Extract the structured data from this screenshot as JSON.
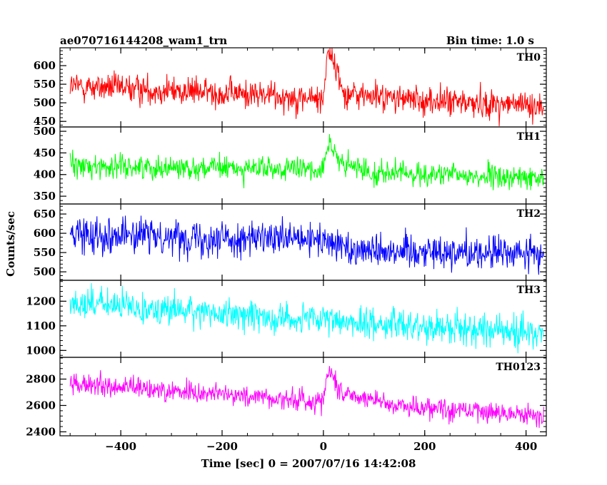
{
  "header": {
    "title": "ae070716144208_wam1_trn",
    "bin_time": "Bin time: 1.0 s"
  },
  "chart_data": {
    "type": "line",
    "title": "ae070716144208_wam1_trn",
    "xlabel": "Time [sec] 0 = 2007/07/16 14:42:08",
    "ylabel": "Counts/sec",
    "xlim": [
      -520,
      440
    ],
    "x_ticks": [
      -400,
      -200,
      0,
      200,
      400
    ],
    "x_tick_labels": [
      "−400",
      "−200",
      "0",
      "200",
      "400"
    ],
    "grid": false,
    "panels": [
      {
        "name": "TH0",
        "color": "#ff0000",
        "ylim": [
          435,
          648
        ],
        "y_ticks": [
          450,
          500,
          550,
          600
        ],
        "x_range": [
          -500,
          435
        ],
        "trend": [
          [
            -500,
            545
          ],
          [
            -250,
            530
          ],
          [
            -100,
            520
          ],
          [
            -10,
            510
          ],
          [
            0,
            510
          ],
          [
            8,
            648
          ],
          [
            20,
            612
          ],
          [
            40,
            525
          ],
          [
            200,
            505
          ],
          [
            435,
            492
          ]
        ],
        "noise": 26
      },
      {
        "name": "TH1",
        "color": "#00ff00",
        "ylim": [
          332,
          510
        ],
        "y_ticks": [
          350,
          400,
          450,
          500
        ],
        "x_range": [
          -500,
          435
        ],
        "trend": [
          [
            -500,
            420
          ],
          [
            -200,
            415
          ],
          [
            -10,
            410
          ],
          [
            0,
            425
          ],
          [
            12,
            480
          ],
          [
            30,
            425
          ],
          [
            100,
            405
          ],
          [
            435,
            390
          ]
        ],
        "noise": 18
      },
      {
        "name": "TH2",
        "color": "#0000ff",
        "ylim": [
          478,
          676
        ],
        "y_ticks": [
          500,
          550,
          600,
          650
        ],
        "x_range": [
          -500,
          435
        ],
        "trend": [
          [
            -500,
            600
          ],
          [
            -250,
            590
          ],
          [
            -10,
            580
          ],
          [
            0,
            590
          ],
          [
            5,
            575
          ],
          [
            60,
            560
          ],
          [
            435,
            545
          ]
        ],
        "noise": 30
      },
      {
        "name": "TH3",
        "color": "#00ffff",
        "ylim": [
          972,
          1285
        ],
        "y_ticks": [
          1000,
          1100,
          1200
        ],
        "x_range": [
          -500,
          435
        ],
        "trend": [
          [
            -500,
            1195
          ],
          [
            -200,
            1150
          ],
          [
            0,
            1120
          ],
          [
            200,
            1100
          ],
          [
            435,
            1070
          ]
        ],
        "noise": 42
      },
      {
        "name": "TH0123",
        "color": "#ff00ff",
        "ylim": [
          2370,
          2965
        ],
        "y_ticks": [
          2400,
          2600,
          2800
        ],
        "x_range": [
          -500,
          435
        ],
        "trend": [
          [
            -500,
            2760
          ],
          [
            -250,
            2700
          ],
          [
            -10,
            2630
          ],
          [
            0,
            2650
          ],
          [
            10,
            2880
          ],
          [
            35,
            2700
          ],
          [
            150,
            2600
          ],
          [
            435,
            2520
          ]
        ],
        "noise": 55
      }
    ]
  }
}
